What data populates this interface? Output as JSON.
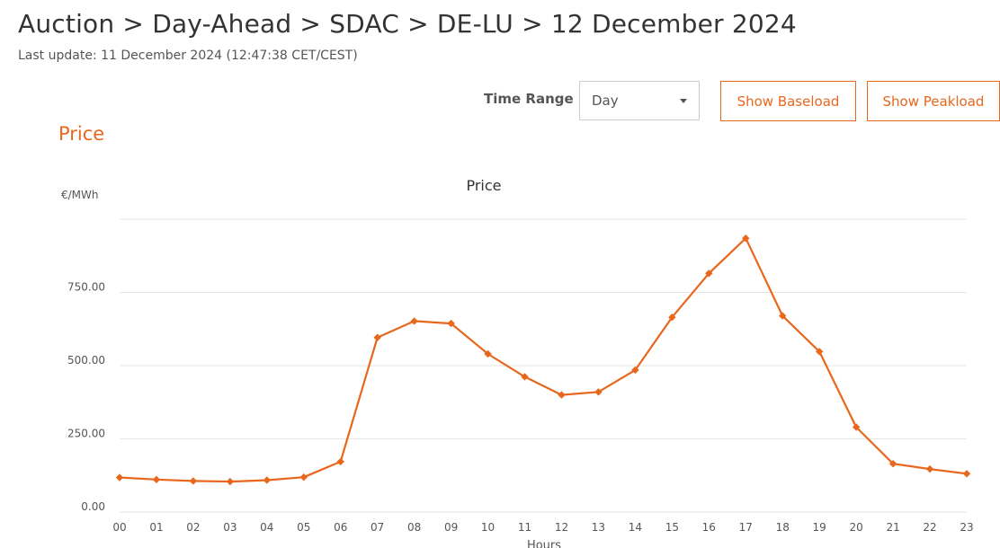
{
  "header": {
    "title": "Auction > Day-Ahead > SDAC > DE-LU > 12 December 2024",
    "last_update": "Last update: 11 December 2024 (12:47:38 CET/CEST)"
  },
  "controls": {
    "time_range_label": "Time Range",
    "time_range_value": "Day",
    "baseload_label": "Show Baseload",
    "peakload_label": "Show Peakload"
  },
  "section": {
    "title": "Price"
  },
  "chart_data": {
    "type": "line",
    "title": "Price",
    "unit_label": "€/MWh",
    "xlabel": "Hours",
    "ylabel": "",
    "categories": [
      "00",
      "01",
      "02",
      "03",
      "04",
      "05",
      "06",
      "07",
      "08",
      "09",
      "10",
      "11",
      "12",
      "13",
      "14",
      "15",
      "16",
      "17",
      "18",
      "19",
      "20",
      "21",
      "22",
      "23"
    ],
    "series": [
      {
        "name": "",
        "values": [
          118,
          111,
          106,
          104,
          109,
          119,
          172,
          596,
          652,
          644,
          540,
          462,
          400,
          410,
          485,
          665,
          815,
          935,
          670,
          548,
          290,
          165,
          147,
          131
        ]
      }
    ],
    "yticks": [
      "0.00",
      "250.00",
      "500.00",
      "750.00"
    ],
    "ytick_values": [
      0,
      250,
      500,
      750
    ],
    "ylim": [
      0,
      1000
    ],
    "grid": true,
    "legend": "none",
    "color": "#e8671d"
  }
}
